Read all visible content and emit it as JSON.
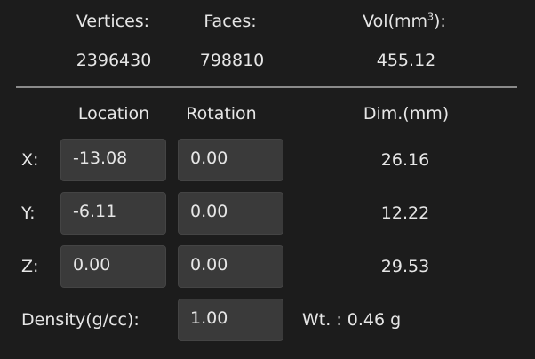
{
  "stats": {
    "vertices_label": "Vertices:",
    "vertices_value": "2396430",
    "faces_label": "Faces:",
    "faces_value": "798810",
    "volume_label_base": "Vol(mm",
    "volume_label_sup": "3",
    "volume_label_end": "):",
    "volume_value": "455.12"
  },
  "transform": {
    "location_header": "Location",
    "rotation_header": "Rotation",
    "dimensions_header": "Dim.(mm)",
    "rows": [
      {
        "axis": "X:",
        "location": "-13.08",
        "rotation": "0.00",
        "dimension": "26.16"
      },
      {
        "axis": "Y:",
        "location": "-6.11",
        "rotation": "0.00",
        "dimension": "12.22"
      },
      {
        "axis": "Z:",
        "location": "0.00",
        "rotation": "0.00",
        "dimension": "29.53"
      }
    ]
  },
  "material": {
    "density_label": "Density(g/cc):",
    "density_value": "1.00",
    "weight_text": "Wt. : 0.46 g"
  }
}
